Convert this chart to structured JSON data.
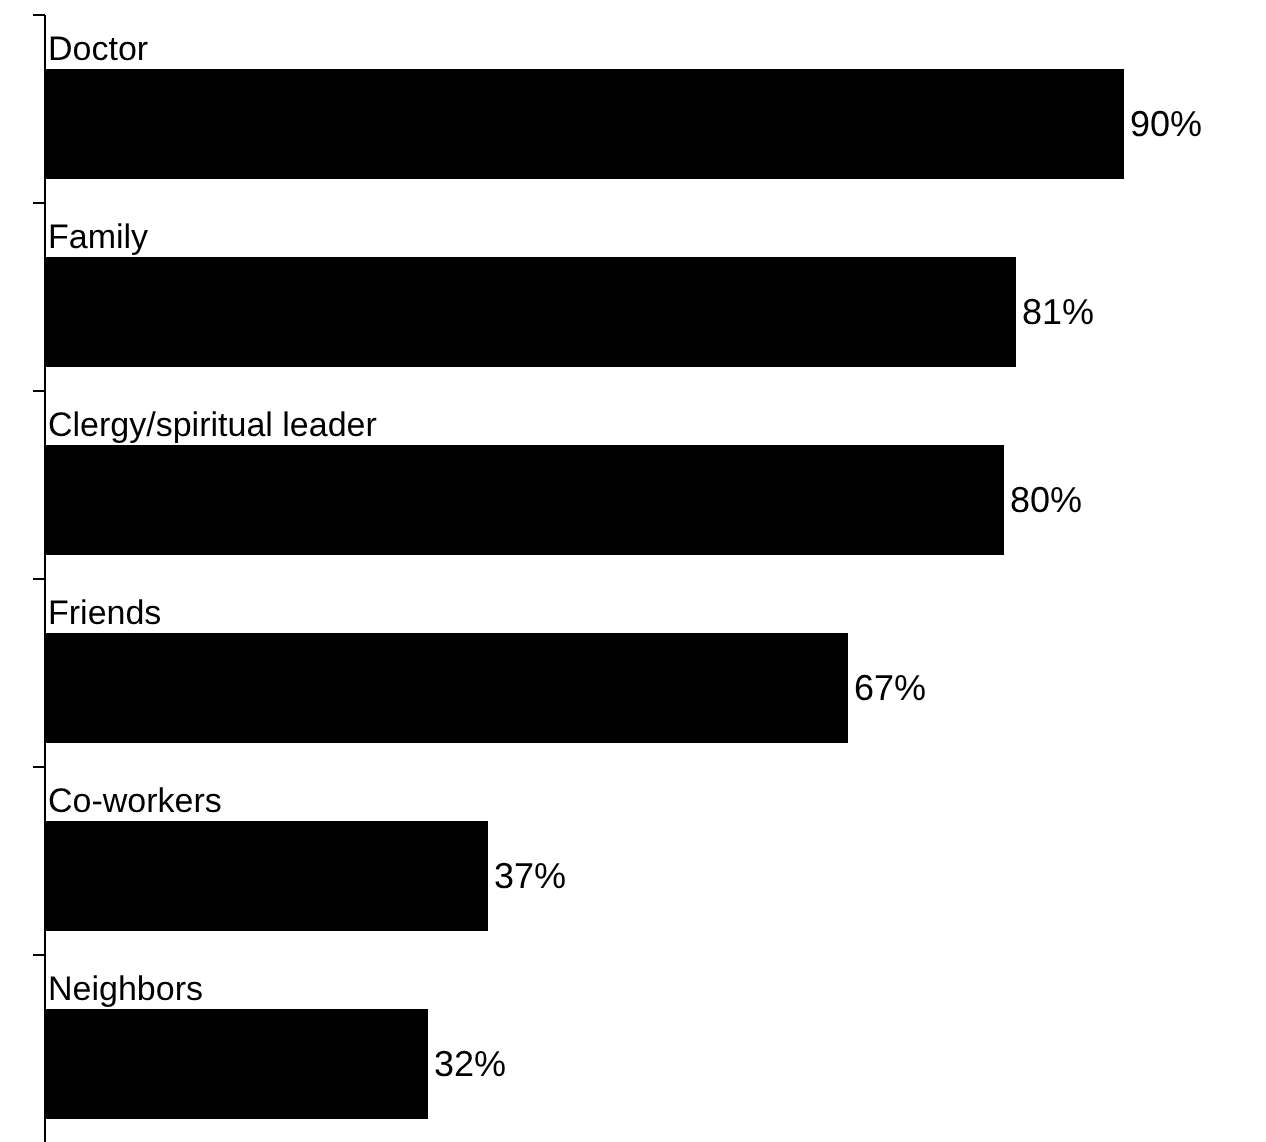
{
  "chart_data": {
    "type": "bar",
    "orientation": "horizontal",
    "categories": [
      "Doctor",
      "Family",
      "Clergy/spiritual leader",
      "Friends",
      "Co-workers",
      "Neighbors"
    ],
    "values": [
      90,
      81,
      80,
      67,
      37,
      32
    ],
    "value_labels": [
      "90%",
      "81%",
      "80%",
      "67%",
      "37%",
      "32%"
    ],
    "color": "#000000"
  }
}
